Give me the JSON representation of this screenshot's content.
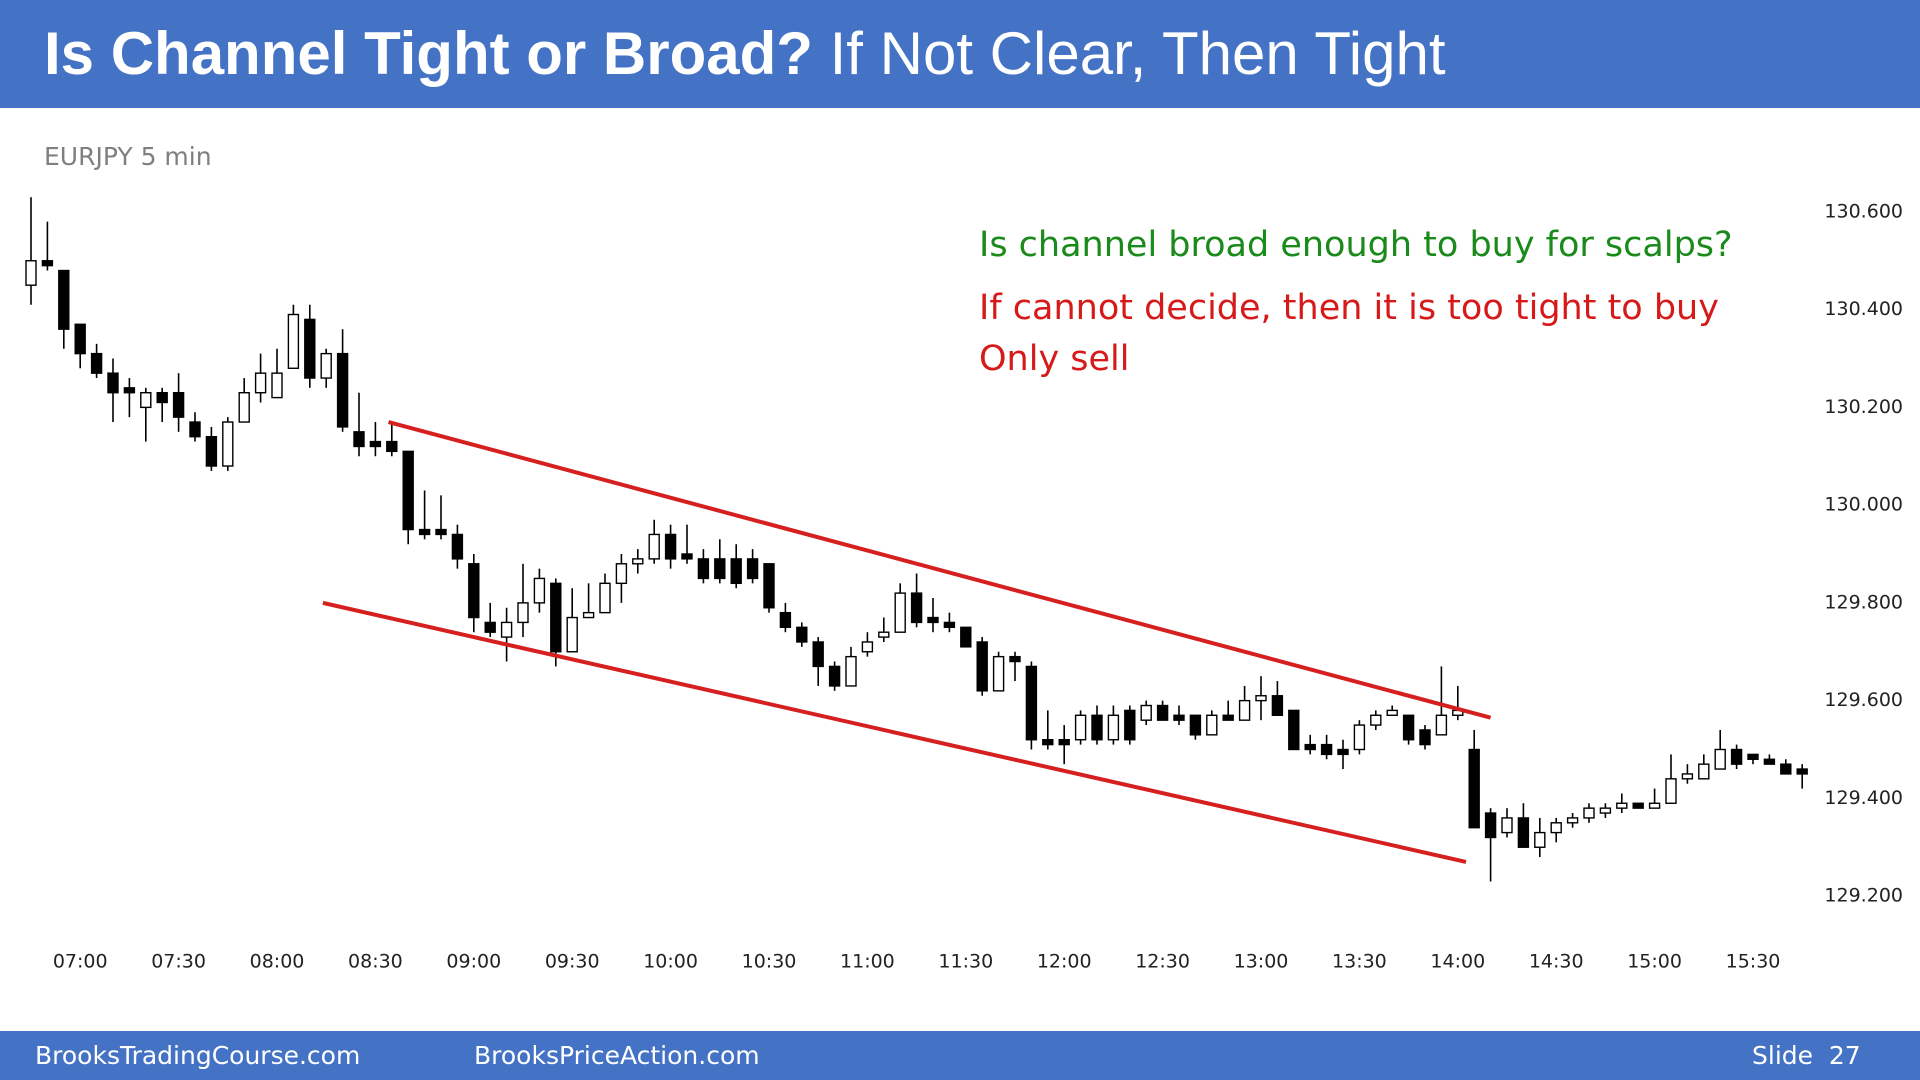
{
  "header": {
    "title_bold": "Is Channel Tight or Broad?",
    "title_rest": "If Not Clear, Then Tight"
  },
  "footer": {
    "left": "BrooksTradingCourse.com",
    "middle": "BrooksPriceAction.com",
    "right": "Slide  27"
  },
  "chart_data": {
    "type": "candlestick",
    "subtitle": "EURJPY 5 min",
    "categories": [
      null,
      null,
      null,
      "07:00",
      null,
      null,
      null,
      null,
      null,
      "07:30",
      null,
      null,
      null,
      null,
      null,
      "08:00",
      null,
      null,
      null,
      null,
      null,
      "08:30",
      null,
      null,
      null,
      null,
      null,
      "09:00",
      null,
      null,
      null,
      null,
      null,
      "09:30",
      null,
      null,
      null,
      null,
      null,
      "10:00",
      null,
      null,
      null,
      null,
      null,
      "10:30",
      null,
      null,
      null,
      null,
      null,
      "11:00",
      null,
      null,
      null,
      null,
      null,
      "11:30",
      null,
      null,
      null,
      null,
      null,
      "12:00",
      null,
      null,
      null,
      null,
      null,
      "12:30",
      null,
      null,
      null,
      null,
      null,
      "13:00",
      null,
      null,
      null,
      null,
      null,
      "13:30",
      null,
      null,
      null,
      null,
      null,
      "14:00",
      null,
      null,
      null,
      null,
      null,
      "14:30",
      null,
      null,
      null,
      null,
      null,
      "15:00",
      null,
      null,
      null,
      null,
      null,
      "15:30",
      null,
      null,
      null
    ],
    "open": [
      130.45,
      130.5,
      130.48,
      130.37,
      130.31,
      130.27,
      130.24,
      130.2,
      130.23,
      130.23,
      130.17,
      130.14,
      130.08,
      130.17,
      130.23,
      130.22,
      130.28,
      130.38,
      130.26,
      130.31,
      130.15,
      130.13,
      130.13,
      130.11,
      129.95,
      129.95,
      129.94,
      129.88,
      129.76,
      129.73,
      129.76,
      129.8,
      129.84,
      129.7,
      129.77,
      129.78,
      129.84,
      129.88,
      129.89,
      129.94,
      129.9,
      129.89,
      129.89,
      129.89,
      129.89,
      129.88,
      129.78,
      129.75,
      129.72,
      129.67,
      129.63,
      129.7,
      129.73,
      129.74,
      129.82,
      129.77,
      129.76,
      129.75,
      129.72,
      129.62,
      129.69,
      129.67,
      129.52,
      129.52,
      129.52,
      129.57,
      129.52,
      129.58,
      129.56,
      129.59,
      129.57,
      129.57,
      129.53,
      129.57,
      129.56,
      129.6,
      129.61,
      129.58,
      129.51,
      129.51,
      129.5,
      129.5,
      129.55,
      129.57,
      129.57,
      129.54,
      129.53,
      129.57,
      129.5,
      129.37,
      129.33,
      129.36,
      129.3,
      129.33,
      129.35,
      129.36,
      129.37,
      129.38,
      129.39,
      129.38,
      129.39,
      129.44,
      129.44,
      129.46,
      129.5,
      129.49,
      129.48,
      129.47,
      129.46
    ],
    "close": [
      130.5,
      130.49,
      130.36,
      130.31,
      130.27,
      130.23,
      130.23,
      130.23,
      130.21,
      130.18,
      130.14,
      130.08,
      130.17,
      130.23,
      130.27,
      130.27,
      130.39,
      130.26,
      130.31,
      130.16,
      130.12,
      130.12,
      130.11,
      129.95,
      129.94,
      129.94,
      129.89,
      129.77,
      129.74,
      129.76,
      129.8,
      129.85,
      129.7,
      129.77,
      129.78,
      129.84,
      129.88,
      129.89,
      129.94,
      129.89,
      129.89,
      129.85,
      129.85,
      129.84,
      129.85,
      129.79,
      129.75,
      129.72,
      129.67,
      129.63,
      129.69,
      129.72,
      129.74,
      129.82,
      129.76,
      129.76,
      129.75,
      129.71,
      129.62,
      129.69,
      129.68,
      129.52,
      129.51,
      129.51,
      129.57,
      129.52,
      129.57,
      129.52,
      129.59,
      129.56,
      129.56,
      129.53,
      129.57,
      129.56,
      129.6,
      129.61,
      129.57,
      129.5,
      129.5,
      129.49,
      129.49,
      129.55,
      129.57,
      129.58,
      129.52,
      129.51,
      129.57,
      129.58,
      129.34,
      129.32,
      129.36,
      129.3,
      129.33,
      129.35,
      129.36,
      129.38,
      129.38,
      129.39,
      129.38,
      129.39,
      129.44,
      129.45,
      129.47,
      129.5,
      129.47,
      129.48,
      129.47,
      129.45,
      129.45
    ],
    "high": [
      130.63,
      130.58,
      130.48,
      130.37,
      130.33,
      130.3,
      130.26,
      130.24,
      130.24,
      130.27,
      130.19,
      130.16,
      130.18,
      130.26,
      130.31,
      130.32,
      130.41,
      130.41,
      130.32,
      130.36,
      130.23,
      130.17,
      130.17,
      130.11,
      130.03,
      130.02,
      129.96,
      129.9,
      129.8,
      129.79,
      129.88,
      129.87,
      129.85,
      129.83,
      129.84,
      129.86,
      129.9,
      129.91,
      129.97,
      129.96,
      129.96,
      129.91,
      129.93,
      129.92,
      129.91,
      129.88,
      129.8,
      129.76,
      129.73,
      129.68,
      129.71,
      129.74,
      129.77,
      129.84,
      129.86,
      129.81,
      129.78,
      129.75,
      129.73,
      129.7,
      129.7,
      129.68,
      129.58,
      129.55,
      129.58,
      129.59,
      129.59,
      129.59,
      129.6,
      129.6,
      129.59,
      129.57,
      129.58,
      129.6,
      129.63,
      129.65,
      129.64,
      129.58,
      129.53,
      129.53,
      129.52,
      129.56,
      129.58,
      129.59,
      129.57,
      129.55,
      129.67,
      129.63,
      129.54,
      129.38,
      129.38,
      129.39,
      129.36,
      129.36,
      129.37,
      129.39,
      129.39,
      129.41,
      129.39,
      129.42,
      129.49,
      129.47,
      129.49,
      129.54,
      129.51,
      129.49,
      129.49,
      129.48,
      129.47
    ],
    "low": [
      130.41,
      130.48,
      130.32,
      130.28,
      130.26,
      130.17,
      130.18,
      130.13,
      130.17,
      130.15,
      130.13,
      130.07,
      130.07,
      130.17,
      130.21,
      130.22,
      130.28,
      130.24,
      130.24,
      130.15,
      130.1,
      130.1,
      130.1,
      129.92,
      129.93,
      129.93,
      129.87,
      129.74,
      129.73,
      129.68,
      129.73,
      129.78,
      129.67,
      129.7,
      129.77,
      129.78,
      129.8,
      129.86,
      129.88,
      129.87,
      129.88,
      129.84,
      129.84,
      129.83,
      129.84,
      129.78,
      129.74,
      129.71,
      129.63,
      129.62,
      129.63,
      129.69,
      129.72,
      129.74,
      129.75,
      129.74,
      129.74,
      129.71,
      129.61,
      129.62,
      129.64,
      129.5,
      129.5,
      129.47,
      129.51,
      129.51,
      129.51,
      129.51,
      129.55,
      129.56,
      129.55,
      129.52,
      129.53,
      129.56,
      129.56,
      129.56,
      129.57,
      129.5,
      129.49,
      129.48,
      129.46,
      129.49,
      129.54,
      129.57,
      129.51,
      129.5,
      129.53,
      129.56,
      129.34,
      129.23,
      129.32,
      129.3,
      129.28,
      129.31,
      129.34,
      129.35,
      129.36,
      129.37,
      129.38,
      129.38,
      129.39,
      129.43,
      129.44,
      129.46,
      129.46,
      129.47,
      129.47,
      129.45,
      129.42
    ],
    "up_color": "#ffffff",
    "down_color": "#000000",
    "ylim": [
      129.1,
      130.7
    ],
    "yticks": [
      {
        "value": 129.2,
        "label": "129.200"
      },
      {
        "value": 129.4,
        "label": "129.400"
      },
      {
        "value": 129.6,
        "label": "129.600"
      },
      {
        "value": 129.8,
        "label": "129.800"
      },
      {
        "value": 130.0,
        "label": "130.000"
      },
      {
        "value": 130.2,
        "label": "130.200"
      },
      {
        "value": 130.4,
        "label": "130.400"
      },
      {
        "value": 130.6,
        "label": "130.600"
      }
    ],
    "grid": false,
    "trend_lines": [
      {
        "color": "#d62020",
        "x_index": [
          21.8,
          89.0
        ],
        "y": [
          130.17,
          129.565
        ]
      },
      {
        "color": "#d62020",
        "x_index": [
          17.8,
          87.5
        ],
        "y": [
          129.8,
          129.27
        ]
      }
    ],
    "annotations": [
      {
        "text": "Is channel broad enough to buy for scalps?",
        "color": "#1a8a1a"
      },
      {
        "text": "If cannot decide, then it is too tight to buy",
        "color": "#d61a1a"
      },
      {
        "text": "Only sell",
        "color": "#d61a1a"
      }
    ]
  }
}
